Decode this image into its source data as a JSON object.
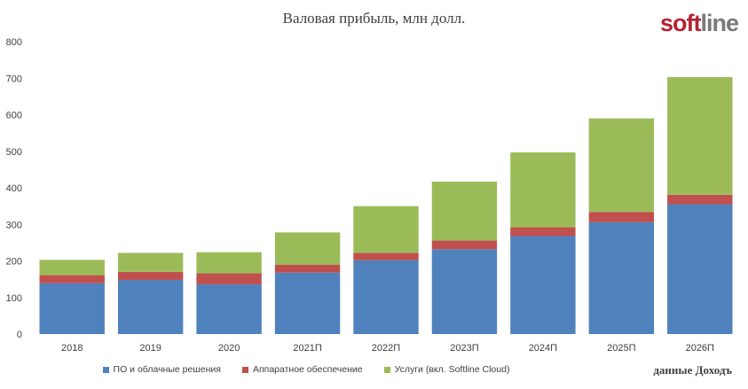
{
  "chart": {
    "title": "Валовая прибыль, млн долл.",
    "logo_part1": "soft",
    "logo_part2": "line",
    "source": "данные Доходъ"
  },
  "chart_data": {
    "type": "bar",
    "stacked": true,
    "title": "Валовая прибыль, млн долл.",
    "categories": [
      "2018",
      "2019",
      "2020",
      "2021П",
      "2022П",
      "2023П",
      "2024П",
      "2025П",
      "2026П"
    ],
    "series": [
      {
        "name": "ПО и облачные решения",
        "color": "#4f81bd",
        "values": [
          139,
          148,
          136,
          168,
          202,
          232,
          268,
          306,
          355
        ]
      },
      {
        "name": "Аппаратное обеспечение",
        "color": "#c0504d",
        "values": [
          22,
          22,
          30,
          22,
          20,
          24,
          24,
          28,
          26
        ]
      },
      {
        "name": "Услуги (вкл. Softline Cloud)",
        "color": "#9bbb59",
        "values": [
          42,
          52,
          58,
          88,
          128,
          161,
          205,
          256,
          322
        ]
      }
    ],
    "ylim": [
      0,
      800
    ],
    "yticks": [
      0,
      100,
      200,
      300,
      400,
      500,
      600,
      700,
      800
    ],
    "grid": false,
    "legend_position": "bottom"
  }
}
